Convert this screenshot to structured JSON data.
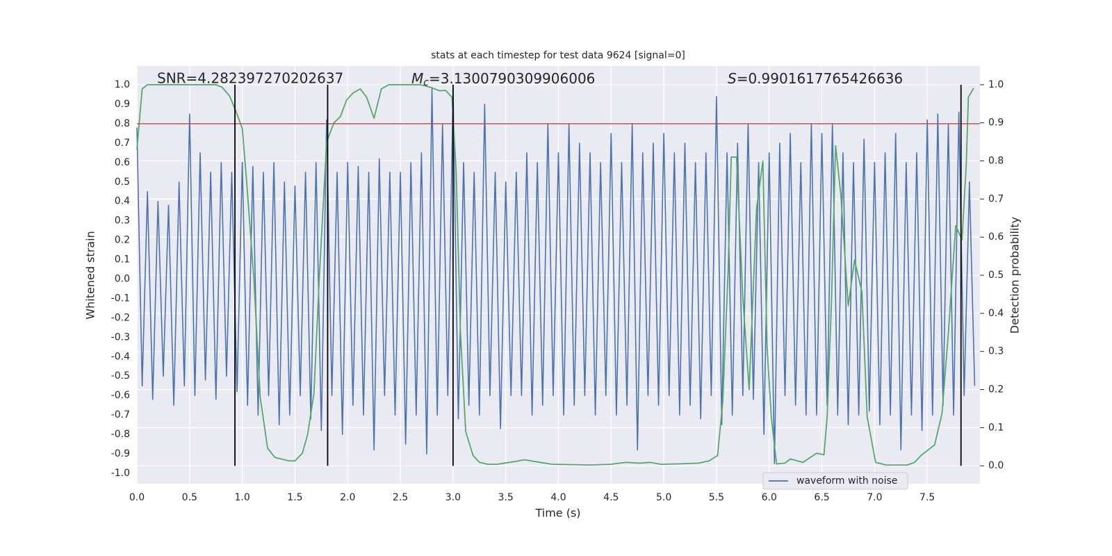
{
  "chart_data": {
    "type": "line",
    "title": "stats at each timestep for test data 9624 [signal=0]",
    "xlabel": "Time (s)",
    "ylabel": "Whitened strain",
    "y2label": "Detection probability",
    "xlim": [
      0,
      8
    ],
    "ylim": [
      -1.054,
      1.097
    ],
    "y2lim": [
      -0.047,
      1.049
    ],
    "xticks": [
      {
        "value": 0,
        "label": "0.0"
      },
      0.5,
      {
        "value": 1,
        "label": "1.0"
      },
      1.5,
      {
        "value": 2,
        "label": "2.0"
      },
      2.5,
      {
        "value": 3,
        "label": "3.0"
      },
      3.5,
      {
        "value": 4,
        "label": "4.0"
      },
      4.5,
      {
        "value": 5,
        "label": "5.0"
      },
      5.5,
      {
        "value": 6,
        "label": "6.0"
      },
      6.5,
      {
        "value": 7,
        "label": "7.0"
      },
      7.5
    ],
    "yticks": [
      {
        "value": -1,
        "label": "-1.0"
      },
      -0.9,
      -0.8,
      -0.7,
      -0.6,
      -0.5,
      -0.4,
      -0.3,
      -0.2,
      -0.1,
      {
        "value": 0,
        "label": "0.0"
      },
      0.1,
      0.2,
      0.3,
      0.4,
      0.5,
      0.6,
      0.7,
      0.8,
      0.9,
      {
        "value": 1,
        "label": "1.0"
      }
    ],
    "y2ticks": [
      {
        "value": 0,
        "label": "0.0"
      },
      0.1,
      0.2,
      0.3,
      0.4,
      0.5,
      0.6,
      0.7,
      0.8,
      0.9,
      {
        "value": 1,
        "label": "1.0"
      }
    ],
    "grid": "x y2",
    "legend": "lower right",
    "annotations": [
      {
        "text": "SNR=4.282397270202637"
      },
      {
        "symbol": "M",
        "subscript": "c",
        "text": "=3.1300790309906006"
      },
      {
        "symbol": "S",
        "text": "=0.9901617765426636"
      }
    ],
    "hline": {
      "value": 0.8,
      "color": "#c44e52"
    },
    "vlines": {
      "x": [
        0.93,
        1.81,
        3.0,
        7.82
      ],
      "y2range": [
        0,
        1
      ],
      "color": "#000000"
    },
    "series": [
      {
        "name": "waveform with noise",
        "color": "#4c72b0",
        "x": [
          0,
          0.05,
          0.1,
          0.15,
          0.2,
          0.25,
          0.3,
          0.35,
          0.4,
          0.45,
          0.5,
          0.55,
          0.6,
          0.65,
          0.7,
          0.75,
          0.8,
          0.85,
          0.9,
          0.95,
          1,
          1.05,
          1.1,
          1.15,
          1.2,
          1.25,
          1.3,
          1.35,
          1.4,
          1.45,
          1.5,
          1.55,
          1.6,
          1.65,
          1.7,
          1.75,
          1.8,
          1.85,
          1.9,
          1.95,
          2,
          2.05,
          2.1,
          2.15,
          2.2,
          2.25,
          2.3,
          2.35,
          2.4,
          2.45,
          2.5,
          2.55,
          2.6,
          2.65,
          2.7,
          2.75,
          2.8,
          2.85,
          2.9,
          2.95,
          3,
          3.05,
          3.1,
          3.15,
          3.2,
          3.25,
          3.3,
          3.35,
          3.4,
          3.45,
          3.5,
          3.55,
          3.6,
          3.65,
          3.7,
          3.75,
          3.8,
          3.85,
          3.9,
          3.95,
          4,
          4.05,
          4.1,
          4.15,
          4.2,
          4.25,
          4.3,
          4.35,
          4.4,
          4.45,
          4.5,
          4.55,
          4.6,
          4.65,
          4.7,
          4.75,
          4.8,
          4.85,
          4.9,
          4.95,
          5,
          5.05,
          5.1,
          5.15,
          5.2,
          5.25,
          5.3,
          5.35,
          5.4,
          5.45,
          5.5,
          5.55,
          5.6,
          5.65,
          5.7,
          5.75,
          5.8,
          5.85,
          5.9,
          5.95,
          6,
          6.05,
          6.1,
          6.15,
          6.2,
          6.25,
          6.3,
          6.35,
          6.4,
          6.45,
          6.5,
          6.55,
          6.6,
          6.65,
          6.7,
          6.75,
          6.8,
          6.85,
          6.9,
          6.95,
          7,
          7.05,
          7.1,
          7.15,
          7.2,
          7.25,
          7.3,
          7.35,
          7.4,
          7.45,
          7.5,
          7.55,
          7.6,
          7.65,
          7.7,
          7.75,
          7.8,
          7.85,
          7.9,
          7.95
        ],
        "values": [
          0.78,
          -0.55,
          0.45,
          -0.62,
          0.4,
          -0.5,
          0.38,
          -0.65,
          0.5,
          -0.55,
          0.85,
          -0.6,
          0.65,
          -0.52,
          0.55,
          -0.62,
          0.6,
          -0.5,
          0.55,
          -0.58,
          0.6,
          -0.65,
          0.58,
          -0.7,
          0.55,
          -0.6,
          0.6,
          -0.75,
          0.5,
          -0.7,
          0.48,
          -0.6,
          0.55,
          -0.72,
          0.6,
          -0.78,
          0.82,
          -0.6,
          0.55,
          -0.8,
          0.6,
          -0.65,
          0.58,
          -0.7,
          0.55,
          -0.88,
          0.62,
          -0.6,
          0.55,
          -0.7,
          0.55,
          -0.85,
          0.6,
          -0.7,
          0.65,
          -0.9,
          0.98,
          -0.7,
          0.8,
          -0.6,
          0.98,
          -0.72,
          0.6,
          -0.65,
          0.55,
          -0.7,
          0.9,
          -0.6,
          0.55,
          -0.77,
          0.5,
          -0.6,
          0.55,
          -0.6,
          0.65,
          -0.7,
          0.6,
          -0.65,
          0.8,
          -0.6,
          0.65,
          -0.7,
          0.8,
          -0.65,
          0.7,
          -0.6,
          0.65,
          -0.7,
          0.6,
          -0.6,
          0.75,
          -0.7,
          0.6,
          -0.65,
          0.8,
          -0.88,
          0.65,
          -0.6,
          0.7,
          -0.65,
          0.75,
          -0.6,
          0.65,
          -0.7,
          0.7,
          -0.65,
          0.6,
          -0.72,
          0.65,
          -0.6,
          0.94,
          -0.75,
          0.65,
          -0.7,
          0.7,
          -0.6,
          0.8,
          -0.62,
          0.6,
          -0.8,
          0.65,
          -0.95,
          0.7,
          -0.6,
          0.75,
          -0.65,
          0.6,
          -0.7,
          0.8,
          -0.7,
          0.75,
          -0.65,
          0.8,
          -0.7,
          0.65,
          -0.75,
          0.6,
          -0.7,
          0.72,
          -0.68,
          0.6,
          -0.75,
          0.65,
          -0.7,
          0.75,
          -0.88,
          0.6,
          -0.7,
          0.65,
          -0.78,
          0.82,
          -0.7,
          0.85,
          -0.65,
          0.8,
          -0.7,
          0.86,
          -0.6,
          0.5,
          -0.55
        ]
      },
      {
        "name": "Detection probability",
        "color": "#55a868",
        "axis": "y2",
        "in_legend": false,
        "x": [
          0,
          0.05,
          0.1,
          0.75,
          0.81,
          0.88,
          0.94,
          1.0,
          1.04,
          1.11,
          1.17,
          1.24,
          1.31,
          1.44,
          1.5,
          1.57,
          1.62,
          1.68,
          1.73,
          1.8,
          1.87,
          1.93,
          1.99,
          2.05,
          2.12,
          2.18,
          2.25,
          2.32,
          2.39,
          2.69,
          2.79,
          2.87,
          2.93,
          2.99,
          3.03,
          3.07,
          3.12,
          3.19,
          3.25,
          3.33,
          3.42,
          3.58,
          3.68,
          3.78,
          3.94,
          4.31,
          4.5,
          4.64,
          4.77,
          4.87,
          4.97,
          5.13,
          5.33,
          5.43,
          5.51,
          5.56,
          5.61,
          5.64,
          5.69,
          5.75,
          5.81,
          5.88,
          5.94,
          5.98,
          6.02,
          6.07,
          6.15,
          6.2,
          6.32,
          6.45,
          6.52,
          6.55,
          6.59,
          6.63,
          6.68,
          6.75,
          6.81,
          6.88,
          6.93,
          7.01,
          7.11,
          7.31,
          7.38,
          7.44,
          7.57,
          7.64,
          7.7,
          7.77,
          7.83,
          7.87,
          7.89,
          7.94
        ],
        "values": [
          0.83,
          0.989,
          1.0,
          1.0,
          0.993,
          0.97,
          0.93,
          0.885,
          0.75,
          0.49,
          0.18,
          0.046,
          0.022,
          0.013,
          0.013,
          0.033,
          0.082,
          0.19,
          0.49,
          0.85,
          0.9,
          0.916,
          0.96,
          0.978,
          0.989,
          0.967,
          0.912,
          0.989,
          1.0,
          1.0,
          0.993,
          0.984,
          0.985,
          0.967,
          0.77,
          0.35,
          0.09,
          0.027,
          0.009,
          0.004,
          0.004,
          0.011,
          0.016,
          0.011,
          0.004,
          0.002,
          0.004,
          0.009,
          0.007,
          0.009,
          0.004,
          0.005,
          0.007,
          0.013,
          0.027,
          0.17,
          0.51,
          0.81,
          0.81,
          0.44,
          0.2,
          0.675,
          0.8,
          0.31,
          0.128,
          0.005,
          0.007,
          0.018,
          0.009,
          0.033,
          0.029,
          0.128,
          0.42,
          0.84,
          0.71,
          0.42,
          0.54,
          0.456,
          0.128,
          0.009,
          0.002,
          0.002,
          0.009,
          0.027,
          0.055,
          0.137,
          0.347,
          0.63,
          0.593,
          0.79,
          0.967,
          0.991
        ]
      }
    ]
  }
}
